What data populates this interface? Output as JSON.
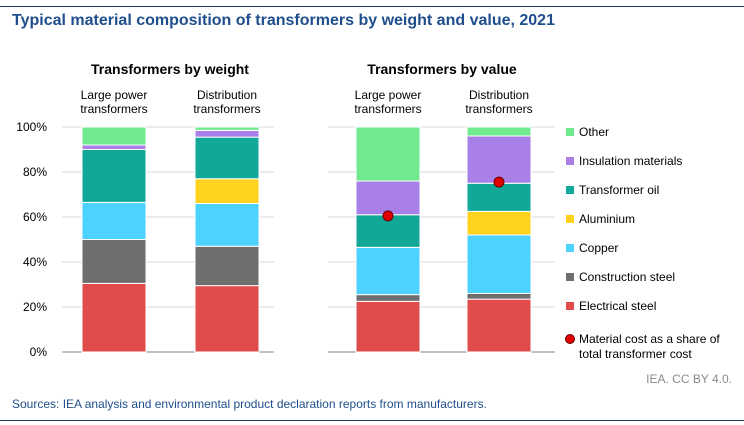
{
  "title": "Typical material composition of transformers by weight and value, 2021",
  "credit": "IEA. CC BY 4.0.",
  "source": "Sources: IEA analysis and environmental product declaration reports from manufacturers.",
  "colors": {
    "Electrical steel": "#e04b4b",
    "Construction steel": "#6e6e6e",
    "Copper": "#4dd2ff",
    "Aluminium": "#ffd21f",
    "Transformer oil": "#11a89a",
    "Insulation materials": "#a880e8",
    "Other": "#6fea8e",
    "marker": "#e10000"
  },
  "chart_data": {
    "type": "bar",
    "stacked": true,
    "ylim": [
      0,
      100
    ],
    "y_ticks": [
      "0%",
      "20%",
      "40%",
      "60%",
      "80%",
      "100%"
    ],
    "legend_position": "right",
    "panels": [
      {
        "title": "Transformers by weight",
        "categories": [
          [
            "Large power",
            "transformers"
          ],
          [
            "Distribution",
            "transformers"
          ]
        ],
        "series": [
          {
            "name": "Electrical steel",
            "values": [
              30.5,
              29.5
            ]
          },
          {
            "name": "Construction steel",
            "values": [
              19.5,
              17.5
            ]
          },
          {
            "name": "Copper",
            "values": [
              16.5,
              19
            ]
          },
          {
            "name": "Aluminium",
            "values": [
              0,
              11
            ]
          },
          {
            "name": "Transformer oil",
            "values": [
              23.5,
              18.5
            ]
          },
          {
            "name": "Insulation materials",
            "values": [
              2,
              3
            ]
          },
          {
            "name": "Other",
            "values": [
              8,
              1.5
            ]
          }
        ]
      },
      {
        "title": "Transformers by value",
        "categories": [
          [
            "Large power",
            "transformers"
          ],
          [
            "Distribution",
            "transformers"
          ]
        ],
        "series": [
          {
            "name": "Electrical steel",
            "values": [
              22.5,
              23.5
            ]
          },
          {
            "name": "Construction steel",
            "values": [
              3,
              2.5
            ]
          },
          {
            "name": "Copper",
            "values": [
              21,
              26
            ]
          },
          {
            "name": "Aluminium",
            "values": [
              0,
              10.5
            ]
          },
          {
            "name": "Transformer oil",
            "values": [
              14.5,
              12.5
            ]
          },
          {
            "name": "Insulation materials",
            "values": [
              15,
              21
            ]
          },
          {
            "name": "Other",
            "values": [
              24,
              4
            ]
          }
        ],
        "markers": {
          "name": "Material cost as a share of total transformer cost",
          "values": [
            60.5,
            75.5
          ]
        }
      }
    ],
    "legend": [
      [
        "Other"
      ],
      [
        "Insulation materials"
      ],
      [
        "Transformer oil"
      ],
      [
        "Aluminium"
      ],
      [
        "Copper"
      ],
      [
        "Construction steel"
      ],
      [
        "Electrical steel"
      ],
      [
        "Material cost as a share of",
        "total transformer cost"
      ]
    ]
  }
}
